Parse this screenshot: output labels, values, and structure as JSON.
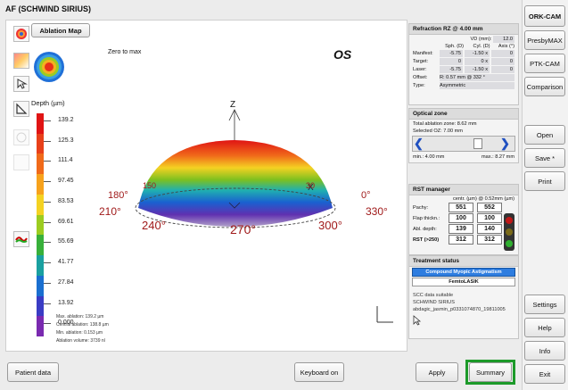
{
  "window": {
    "title": "AF (SCHWIND SIRIUS)"
  },
  "main": {
    "tab_label": "Ablation Map",
    "zero_to_max": "Zero to max",
    "eye": "OS",
    "depth_label": "Depth (µm)",
    "scale": [
      "139.2",
      "125.3",
      "111.4",
      "97.45",
      "83.53",
      "69.61",
      "55.69",
      "41.77",
      "27.84",
      "13.92",
      "0.000"
    ],
    "scale_colors": [
      "#e01414",
      "#e8401a",
      "#f06a1a",
      "#f7a21c",
      "#f4d222",
      "#9ccc20",
      "#38b03a",
      "#1aa0a0",
      "#1a6fd0",
      "#3a3cc4",
      "#7a2ab0"
    ],
    "stats": [
      "Max. ablation: 139.2 µm",
      "Central ablation: 138.8 µm",
      "Min. ablation: 0.153 µm",
      "Ablation volume: 3739 nl"
    ],
    "axis_z": "Z",
    "axis_x": "X",
    "angles": {
      "a180": "180°",
      "a210": "210°",
      "a240": "240°",
      "a270": "270°",
      "a300": "300°",
      "a330": "330°",
      "a0": "0°",
      "a150": "150",
      "a30": "30"
    }
  },
  "refraction": {
    "title": "Refraction RZ @ 4.00 mm",
    "vd_label": "VD (mm):",
    "vd_value": "12.0",
    "col_sph": "Sph. (D)",
    "col_cyl": "Cyl. (D)",
    "col_axis": "Axis (°)",
    "rows": [
      {
        "label": "Manifest:",
        "sph": "-5.75",
        "cyl": "-1.50 x",
        "axis": "0"
      },
      {
        "label": "Target:",
        "sph": "0",
        "cyl": "0 x",
        "axis": "0"
      },
      {
        "label": "Laser:",
        "sph": "-5.75",
        "cyl": "-1.50 x",
        "axis": "0"
      }
    ],
    "offset_label": "Offset:",
    "offset_value": "R: 0.57 mm @ 332 °",
    "type_label": "Type:",
    "type_value": "Asymmetric"
  },
  "optical_zone": {
    "title": "Optical zone",
    "total": "Total ablation zone: 8.62 mm",
    "selected": "Selected OZ: 7.00 mm",
    "min": "min.: 4.00 mm",
    "max": "max.: 8.27 mm",
    "slider_fraction": 0.71
  },
  "rst": {
    "title": "RST manager",
    "header": "centr. (µm)  @ 0.52mm (µm)",
    "rows": [
      {
        "label": "Pachy:",
        "a": "551",
        "b": "552"
      },
      {
        "label": "Flap thickn.:",
        "a": "100",
        "b": "100"
      },
      {
        "label": "Abl. depth:",
        "a": "139",
        "b": "140"
      },
      {
        "label": "RST (>250)",
        "a": "312",
        "b": "312"
      }
    ]
  },
  "treatment": {
    "title": "Treatment status",
    "line1": "Compound Myopic Astigmatism",
    "line2": "FemtoLASIK",
    "note1": "SCC data suitable",
    "note2": "SCHWIND SIRIUS",
    "note3": "abdagic_jasmin_p0331074870_19811005"
  },
  "rightcol": {
    "orkcam": "ORK-CAM",
    "presbymax": "PresbyMAX",
    "ptkcam": "PTK-CAM",
    "comparison": "Comparison",
    "open": "Open",
    "save": "Save *",
    "print": "Print",
    "settings": "Settings",
    "help": "Help",
    "info": "Info",
    "exit": "Exit"
  },
  "bottom": {
    "patient_data": "Patient data",
    "keyboard": "Keyboard on",
    "apply": "Apply",
    "summary": "Summary"
  },
  "colors": {
    "summary_highlight": "#1d9a2a",
    "dark_red": "#a01a1a"
  }
}
